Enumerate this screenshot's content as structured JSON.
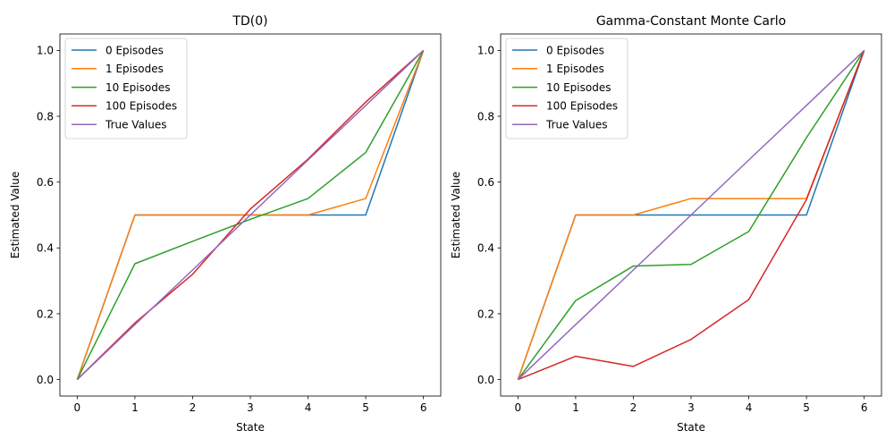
{
  "chart_data": [
    {
      "type": "line",
      "title": "TD(0)",
      "xlabel": "State",
      "ylabel": "Estimated Value",
      "xlim": [
        -0.3,
        6.3
      ],
      "ylim": [
        -0.05,
        1.05
      ],
      "xticks": [
        0,
        1,
        2,
        3,
        4,
        5,
        6
      ],
      "xtick_labels": [
        "0",
        "1",
        "2",
        "3",
        "4",
        "5",
        "6"
      ],
      "yticks": [
        0,
        0.2,
        0.4,
        0.6,
        0.8,
        1.0
      ],
      "ytick_labels": [
        "0.0",
        "0.2",
        "0.4",
        "0.6",
        "0.8",
        "1.0"
      ],
      "grid": false,
      "legend_position": "top-left",
      "x": [
        0,
        1,
        2,
        3,
        4,
        5,
        6
      ],
      "series": [
        {
          "name": "0 Episodes",
          "color": "#1f77b4",
          "values": [
            0,
            0.5,
            0.5,
            0.5,
            0.5,
            0.5,
            1.0
          ]
        },
        {
          "name": "1 Episodes",
          "color": "#ff7f0e",
          "values": [
            0,
            0.5,
            0.5,
            0.5,
            0.5,
            0.55,
            1.0
          ]
        },
        {
          "name": "10 Episodes",
          "color": "#2ca02c",
          "values": [
            0,
            0.352,
            0.42,
            0.487,
            0.55,
            0.69,
            1.0
          ]
        },
        {
          "name": "100 Episodes",
          "color": "#d62728",
          "values": [
            0,
            0.172,
            0.32,
            0.518,
            0.67,
            0.843,
            1.0
          ]
        },
        {
          "name": "True Values",
          "color": "#9467bd",
          "values": [
            0,
            0.167,
            0.333,
            0.5,
            0.667,
            0.833,
            1.0
          ]
        }
      ]
    },
    {
      "type": "line",
      "title": "Gamma-Constant Monte Carlo",
      "xlabel": "State",
      "ylabel": "Estimated Value",
      "xlim": [
        -0.3,
        6.3
      ],
      "ylim": [
        -0.05,
        1.05
      ],
      "xticks": [
        0,
        1,
        2,
        3,
        4,
        5,
        6
      ],
      "xtick_labels": [
        "0",
        "1",
        "2",
        "3",
        "4",
        "5",
        "6"
      ],
      "yticks": [
        0,
        0.2,
        0.4,
        0.6,
        0.8,
        1.0
      ],
      "ytick_labels": [
        "0.0",
        "0.2",
        "0.4",
        "0.6",
        "0.8",
        "1.0"
      ],
      "grid": false,
      "legend_position": "top-left",
      "x": [
        0,
        1,
        2,
        3,
        4,
        5,
        6
      ],
      "series": [
        {
          "name": "0 Episodes",
          "color": "#1f77b4",
          "values": [
            0,
            0.5,
            0.5,
            0.5,
            0.5,
            0.5,
            1.0
          ]
        },
        {
          "name": "1 Episodes",
          "color": "#ff7f0e",
          "values": [
            0,
            0.5,
            0.5,
            0.55,
            0.55,
            0.55,
            1.0
          ]
        },
        {
          "name": "10 Episodes",
          "color": "#2ca02c",
          "values": [
            0,
            0.24,
            0.345,
            0.35,
            0.45,
            0.735,
            1.0
          ]
        },
        {
          "name": "100 Episodes",
          "color": "#d62728",
          "values": [
            0,
            0.071,
            0.04,
            0.122,
            0.243,
            0.547,
            1.0
          ]
        },
        {
          "name": "True Values",
          "color": "#9467bd",
          "values": [
            0,
            0.167,
            0.333,
            0.5,
            0.667,
            0.833,
            1.0
          ]
        }
      ]
    }
  ]
}
